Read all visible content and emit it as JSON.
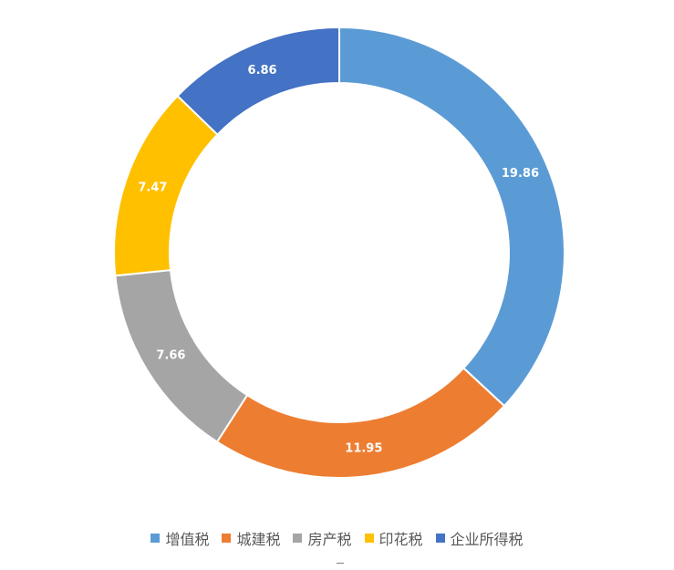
{
  "chart_data": {
    "type": "pie",
    "variant": "donut",
    "categories": [
      "增值税",
      "城建税",
      "房产税",
      "印花税",
      "企业所得税"
    ],
    "values": [
      19.86,
      11.95,
      7.66,
      7.47,
      6.86
    ],
    "value_labels": [
      "19.86",
      "11.95",
      "7.66",
      "7.47",
      "6.86"
    ],
    "colors": [
      "#5B9BD5",
      "#ED7D31",
      "#A5A5A5",
      "#FFC000",
      "#4472C4"
    ],
    "start_angle_deg": 0,
    "direction": "clockwise",
    "legend_position": "bottom",
    "title": ""
  }
}
